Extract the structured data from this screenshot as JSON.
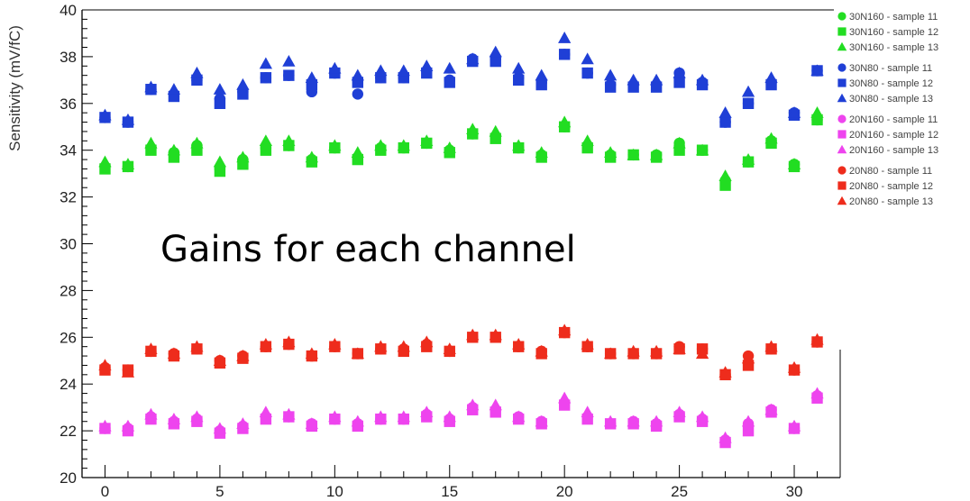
{
  "chart_data": {
    "type": "scatter",
    "title": "",
    "xlabel": "",
    "ylabel": "Sensitivity (mV/fC)",
    "annotation": "Gains for each channel",
    "xlim": [
      -1,
      32
    ],
    "ylim": [
      20,
      40
    ],
    "x_ticks": [
      0,
      5,
      10,
      15,
      20,
      25,
      30
    ],
    "y_ticks": [
      20,
      22,
      24,
      26,
      28,
      30,
      32,
      34,
      36,
      38,
      40
    ],
    "grid": false,
    "legend_position": "top-right",
    "x": [
      0,
      1,
      2,
      3,
      4,
      5,
      6,
      7,
      8,
      9,
      10,
      11,
      12,
      13,
      14,
      15,
      16,
      17,
      18,
      19,
      20,
      21,
      22,
      23,
      24,
      25,
      26,
      27,
      28,
      29,
      30,
      31
    ],
    "groups": [
      {
        "color": "#22dd22",
        "series": [
          {
            "name": "30N160 - sample 11",
            "marker": "circle",
            "values": [
              33.3,
              33.3,
              34.1,
              33.9,
              34.2,
              33.2,
              33.6,
              34.1,
              34.2,
              33.6,
              34.1,
              33.7,
              34.1,
              34.1,
              34.3,
              34.0,
              34.7,
              34.6,
              34.1,
              33.8,
              35.0,
              34.2,
              33.8,
              33.8,
              33.8,
              34.3,
              34.0,
              32.7,
              33.5,
              34.4,
              33.4,
              35.3
            ]
          },
          {
            "name": "30N160 - sample 12",
            "marker": "square",
            "values": [
              33.2,
              33.3,
              34.0,
              33.7,
              34.0,
              33.1,
              33.4,
              34.0,
              34.2,
              33.5,
              34.1,
              33.6,
              34.0,
              34.1,
              34.3,
              33.9,
              34.7,
              34.5,
              34.1,
              33.7,
              35.0,
              34.1,
              33.7,
              33.8,
              33.7,
              34.0,
              34.0,
              32.5,
              33.5,
              34.3,
              33.3,
              35.3
            ]
          },
          {
            "name": "30N160 - sample 13",
            "marker": "triangle",
            "values": [
              33.5,
              33.4,
              34.3,
              34.0,
              34.3,
              33.5,
              33.7,
              34.4,
              34.4,
              33.7,
              34.2,
              33.9,
              34.2,
              34.2,
              34.4,
              34.1,
              34.9,
              34.8,
              34.2,
              33.9,
              35.2,
              34.4,
              33.9,
              33.8,
              33.8,
              34.3,
              34.0,
              32.9,
              33.6,
              34.5,
              33.4,
              35.6
            ]
          }
        ]
      },
      {
        "color": "#1f3fd6",
        "series": [
          {
            "name": "30N80 - sample 11",
            "marker": "circle",
            "values": [
              35.4,
              35.2,
              36.6,
              36.4,
              37.0,
              36.2,
              36.5,
              37.1,
              37.2,
              36.5,
              37.3,
              36.4,
              37.1,
              37.1,
              37.4,
              37.0,
              37.9,
              37.9,
              37.1,
              36.9,
              38.1,
              37.3,
              36.8,
              36.8,
              36.8,
              37.3,
              36.9,
              35.2,
              36.0,
              36.9,
              35.6,
              37.4
            ]
          },
          {
            "name": "30N80 - sample 12",
            "marker": "square",
            "values": [
              35.4,
              35.2,
              36.6,
              36.3,
              37.0,
              36.0,
              36.4,
              37.1,
              37.2,
              36.8,
              37.3,
              36.9,
              37.1,
              37.1,
              37.3,
              36.9,
              37.8,
              37.8,
              37.0,
              36.8,
              38.1,
              37.3,
              36.7,
              36.7,
              36.7,
              36.9,
              36.8,
              35.2,
              36.0,
              36.8,
              35.5,
              37.4
            ]
          },
          {
            "name": "30N80 - sample 13",
            "marker": "triangle",
            "values": [
              35.5,
              35.3,
              36.7,
              36.6,
              37.3,
              36.6,
              36.8,
              37.7,
              37.8,
              37.1,
              37.5,
              37.2,
              37.4,
              37.4,
              37.6,
              37.5,
              37.9,
              38.2,
              37.5,
              37.2,
              38.8,
              37.9,
              37.2,
              37.0,
              37.0,
              37.3,
              37.0,
              35.6,
              36.5,
              37.1,
              35.6,
              37.4
            ]
          }
        ]
      },
      {
        "color": "#ee44ee",
        "series": [
          {
            "name": "20N160 - sample 11",
            "marker": "circle",
            "values": [
              22.1,
              22.1,
              22.6,
              22.4,
              22.5,
              22.0,
              22.2,
              22.6,
              22.6,
              22.3,
              22.5,
              22.3,
              22.5,
              22.5,
              22.7,
              22.5,
              23.0,
              22.9,
              22.6,
              22.4,
              23.2,
              22.6,
              22.3,
              22.4,
              22.3,
              22.7,
              22.5,
              21.6,
              22.3,
              22.9,
              22.1,
              23.5
            ]
          },
          {
            "name": "20N160 - sample 12",
            "marker": "square",
            "values": [
              22.1,
              22.0,
              22.5,
              22.3,
              22.4,
              21.9,
              22.1,
              22.5,
              22.6,
              22.2,
              22.5,
              22.2,
              22.5,
              22.5,
              22.6,
              22.4,
              22.9,
              22.8,
              22.5,
              22.3,
              23.1,
              22.5,
              22.3,
              22.3,
              22.2,
              22.6,
              22.4,
              21.5,
              22.0,
              22.8,
              22.1,
              23.4
            ]
          },
          {
            "name": "20N160 - sample 13",
            "marker": "triangle",
            "values": [
              22.2,
              22.2,
              22.7,
              22.5,
              22.6,
              22.1,
              22.3,
              22.8,
              22.7,
              22.3,
              22.6,
              22.4,
              22.6,
              22.6,
              22.8,
              22.6,
              23.1,
              23.1,
              22.6,
              22.4,
              23.4,
              22.8,
              22.4,
              22.4,
              22.4,
              22.8,
              22.6,
              21.7,
              22.4,
              22.9,
              22.2,
              23.6
            ]
          }
        ]
      },
      {
        "color": "#ee2c1c",
        "series": [
          {
            "name": "20N80 - sample 11",
            "marker": "circle",
            "values": [
              24.7,
              24.6,
              25.4,
              25.3,
              25.5,
              25.0,
              25.2,
              25.6,
              25.7,
              25.2,
              25.6,
              25.3,
              25.5,
              25.5,
              25.7,
              25.4,
              26.0,
              26.0,
              25.6,
              25.4,
              26.2,
              25.6,
              25.3,
              25.3,
              25.3,
              25.6,
              25.5,
              24.4,
              25.2,
              25.5,
              24.6,
              25.8
            ]
          },
          {
            "name": "20N80 - sample 12",
            "marker": "square",
            "values": [
              24.6,
              24.6,
              25.4,
              25.2,
              25.5,
              24.9,
              25.1,
              25.6,
              25.7,
              25.2,
              25.6,
              25.3,
              25.5,
              25.4,
              25.6,
              25.4,
              26.0,
              26.0,
              25.6,
              25.3,
              26.2,
              25.6,
              25.3,
              25.3,
              25.3,
              25.5,
              25.5,
              24.4,
              24.8,
              25.5,
              24.6,
              25.8
            ]
          },
          {
            "name": "20N80 - sample 13",
            "marker": "triangle",
            "values": [
              24.8,
              24.5,
              25.5,
              25.3,
              25.6,
              25.0,
              25.2,
              25.7,
              25.8,
              25.3,
              25.7,
              25.3,
              25.6,
              25.6,
              25.8,
              25.5,
              26.1,
              26.1,
              25.7,
              25.4,
              26.3,
              25.7,
              25.3,
              25.4,
              25.4,
              25.5,
              25.3,
              24.5,
              25.1,
              25.6,
              24.7,
              25.9
            ]
          }
        ]
      }
    ]
  }
}
